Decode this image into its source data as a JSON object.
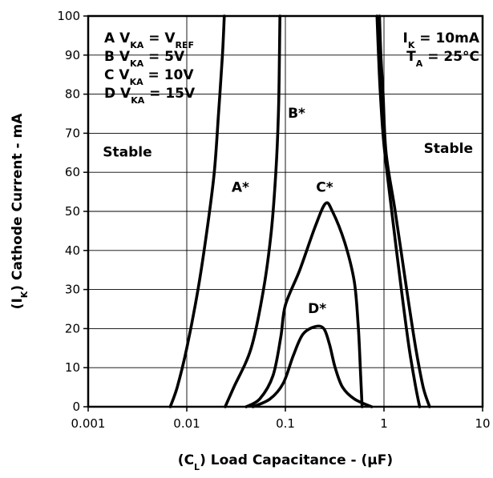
{
  "chart_data": {
    "type": "line",
    "x_scale": "log",
    "xlim": [
      0.001,
      10
    ],
    "ylim": [
      0,
      100
    ],
    "grid": true,
    "x_ticks": [
      "0.001",
      "0.01",
      "0.1",
      "1",
      "10"
    ],
    "y_ticks": [
      "0",
      "10",
      "20",
      "30",
      "40",
      "50",
      "60",
      "70",
      "80",
      "90",
      "100"
    ],
    "xlabel_parts": [
      {
        "t": "(C"
      },
      {
        "t": "L",
        "sub": true
      },
      {
        "t": ")  Load Capacitance - (µF)"
      }
    ],
    "ylabel_parts": [
      {
        "t": "(I"
      },
      {
        "t": "K",
        "sub": true
      },
      {
        "t": ")  Cathode Current - mA"
      }
    ],
    "legend_lines": [
      [
        {
          "t": "A  V"
        },
        {
          "t": "KA",
          "sub": true
        },
        {
          "t": " = V"
        },
        {
          "t": "REF",
          "sub": true
        }
      ],
      [
        {
          "t": "B  V"
        },
        {
          "t": "KA",
          "sub": true
        },
        {
          "t": " = 5V"
        }
      ],
      [
        {
          "t": "C  V"
        },
        {
          "t": "KA",
          "sub": true
        },
        {
          "t": " = 10V"
        }
      ],
      [
        {
          "t": "D  V"
        },
        {
          "t": "KA",
          "sub": true
        },
        {
          "t": " = 15V"
        }
      ]
    ],
    "conditions_lines": [
      [
        {
          "t": "I"
        },
        {
          "t": "K",
          "sub": true
        },
        {
          "t": " = 10mA"
        }
      ],
      [
        {
          "t": "T"
        },
        {
          "t": "A",
          "sub": true
        },
        {
          "t": " = 25°C"
        }
      ]
    ],
    "annotations": [
      {
        "text": "Stable",
        "x": 0.0025,
        "y": 64
      },
      {
        "text": "Stable",
        "x": 4.5,
        "y": 65
      },
      {
        "text": "A*",
        "x": 0.035,
        "y": 55
      },
      {
        "text": "B*",
        "x": 0.13,
        "y": 74
      },
      {
        "text": "C*",
        "x": 0.25,
        "y": 55
      },
      {
        "text": "D*",
        "x": 0.21,
        "y": 24
      }
    ],
    "series": [
      {
        "name": "A",
        "points": [
          [
            0.0068,
            0
          ],
          [
            0.008,
            5
          ],
          [
            0.01,
            15
          ],
          [
            0.013,
            30
          ],
          [
            0.016,
            45
          ],
          [
            0.019,
            60
          ],
          [
            0.021,
            75
          ],
          [
            0.023,
            90
          ],
          [
            0.024,
            100
          ]
        ]
      },
      {
        "name": "B",
        "points": [
          [
            0.0245,
            0
          ],
          [
            0.03,
            5
          ],
          [
            0.045,
            15
          ],
          [
            0.06,
            30
          ],
          [
            0.072,
            45
          ],
          [
            0.08,
            60
          ],
          [
            0.085,
            75
          ],
          [
            0.087,
            90
          ],
          [
            0.088,
            100
          ]
        ]
      },
      {
        "name": "A",
        "points": [
          [
            0.85,
            100
          ],
          [
            0.88,
            90
          ],
          [
            0.92,
            80
          ],
          [
            1.0,
            67
          ],
          [
            1.2,
            50
          ],
          [
            1.5,
            30
          ],
          [
            1.8,
            15
          ],
          [
            2.1,
            5
          ],
          [
            2.3,
            0
          ]
        ]
      },
      {
        "name": "B",
        "points": [
          [
            0.9,
            100
          ],
          [
            0.93,
            90
          ],
          [
            0.98,
            80
          ],
          [
            1.05,
            65
          ],
          [
            1.3,
            50
          ],
          [
            1.7,
            30
          ],
          [
            2.1,
            15
          ],
          [
            2.5,
            5
          ],
          [
            2.9,
            0
          ]
        ]
      },
      {
        "name": "C",
        "points": [
          [
            0.04,
            0
          ],
          [
            0.055,
            2
          ],
          [
            0.075,
            8
          ],
          [
            0.09,
            18
          ],
          [
            0.1,
            26
          ],
          [
            0.14,
            35
          ],
          [
            0.2,
            46
          ],
          [
            0.255,
            52
          ],
          [
            0.3,
            50
          ],
          [
            0.4,
            42
          ],
          [
            0.5,
            32
          ],
          [
            0.55,
            20
          ],
          [
            0.58,
            8
          ],
          [
            0.6,
            0
          ]
        ]
      },
      {
        "name": "D",
        "points": [
          [
            0.047,
            0
          ],
          [
            0.07,
            2
          ],
          [
            0.095,
            6
          ],
          [
            0.12,
            13
          ],
          [
            0.15,
            18.5
          ],
          [
            0.2,
            20.5
          ],
          [
            0.245,
            20
          ],
          [
            0.28,
            16
          ],
          [
            0.32,
            10
          ],
          [
            0.38,
            5
          ],
          [
            0.5,
            2
          ],
          [
            0.75,
            0
          ]
        ]
      }
    ]
  }
}
